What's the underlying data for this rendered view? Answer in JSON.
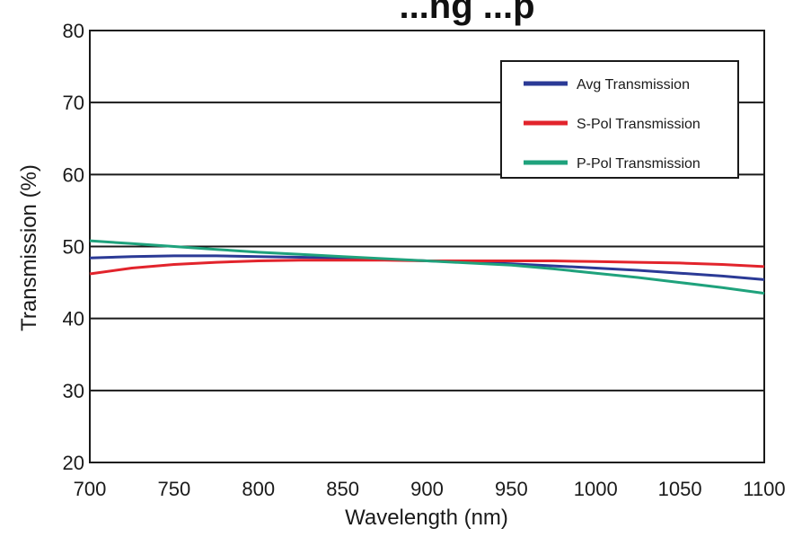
{
  "chart_data": {
    "type": "line",
    "title": "...ng ...p",
    "xlabel": "Wavelength (nm)",
    "ylabel": "Transmission (%)",
    "xlim": [
      700,
      1100
    ],
    "ylim": [
      20,
      80
    ],
    "x_ticks": [
      700,
      750,
      800,
      850,
      900,
      950,
      1000,
      1050,
      1100
    ],
    "y_ticks": [
      20,
      30,
      40,
      50,
      60,
      70,
      80
    ],
    "grid": "horizontal",
    "legend_position": "top-right",
    "x": [
      700,
      725,
      750,
      775,
      800,
      825,
      850,
      875,
      900,
      925,
      950,
      975,
      1000,
      1025,
      1050,
      1075,
      1100
    ],
    "series": [
      {
        "name": "Avg Transmission",
        "color": "#2b3a96",
        "values": [
          48.4,
          48.6,
          48.7,
          48.7,
          48.6,
          48.5,
          48.4,
          48.2,
          48.0,
          47.8,
          47.6,
          47.3,
          47.0,
          46.7,
          46.3,
          45.9,
          45.4
        ]
      },
      {
        "name": "S-Pol Transmission",
        "color": "#e2242c",
        "values": [
          46.2,
          47.0,
          47.5,
          47.8,
          48.0,
          48.1,
          48.1,
          48.1,
          48.0,
          48.0,
          48.0,
          48.0,
          47.9,
          47.8,
          47.7,
          47.5,
          47.2
        ]
      },
      {
        "name": "P-Pol Transmission",
        "color": "#1fa27c",
        "values": [
          50.8,
          50.4,
          50.0,
          49.6,
          49.2,
          48.9,
          48.6,
          48.3,
          48.0,
          47.7,
          47.4,
          46.9,
          46.3,
          45.7,
          45.0,
          44.3,
          43.5
        ]
      }
    ]
  }
}
